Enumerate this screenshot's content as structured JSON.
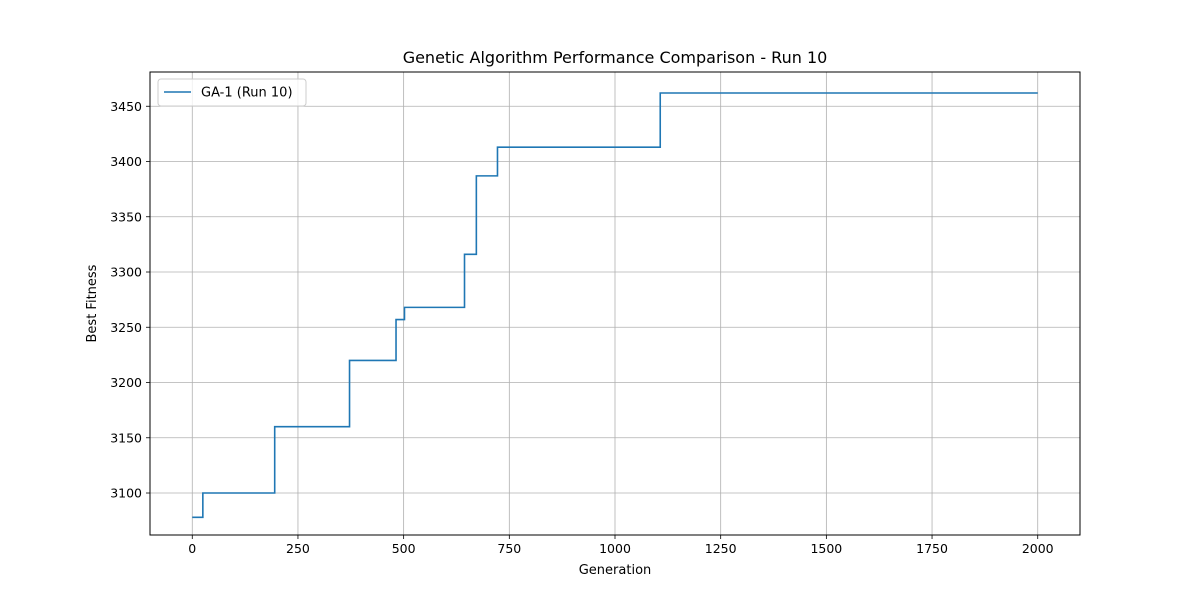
{
  "chart_data": {
    "type": "line",
    "title": "Genetic Algorithm Performance Comparison - Run 10",
    "xlabel": "Generation",
    "ylabel": "Best Fitness",
    "xlim": [
      -100,
      2100
    ],
    "ylim": [
      3062,
      3481
    ],
    "xticks": [
      0,
      250,
      500,
      750,
      1000,
      1250,
      1500,
      1750,
      2000
    ],
    "xtick_labels": [
      "0",
      "250",
      "500",
      "750",
      "1000",
      "1250",
      "1500",
      "1750",
      "2000"
    ],
    "yticks": [
      3100,
      3150,
      3200,
      3250,
      3300,
      3350,
      3400,
      3450
    ],
    "ytick_labels": [
      "3100",
      "3150",
      "3200",
      "3250",
      "3300",
      "3350",
      "3400",
      "3450"
    ],
    "grid": true,
    "legend": "top-left",
    "series": [
      {
        "name": "GA-1 (Run 10)",
        "color": "#1f77b4",
        "step": true,
        "points": [
          [
            0,
            3078
          ],
          [
            25,
            3078
          ],
          [
            25,
            3100
          ],
          [
            195,
            3100
          ],
          [
            195,
            3160
          ],
          [
            372,
            3160
          ],
          [
            372,
            3220
          ],
          [
            482,
            3220
          ],
          [
            482,
            3257
          ],
          [
            502,
            3257
          ],
          [
            502,
            3268
          ],
          [
            644,
            3268
          ],
          [
            644,
            3316
          ],
          [
            672,
            3316
          ],
          [
            672,
            3387
          ],
          [
            722,
            3387
          ],
          [
            722,
            3413
          ],
          [
            1107,
            3413
          ],
          [
            1107,
            3462
          ],
          [
            2000,
            3462
          ]
        ]
      }
    ]
  }
}
